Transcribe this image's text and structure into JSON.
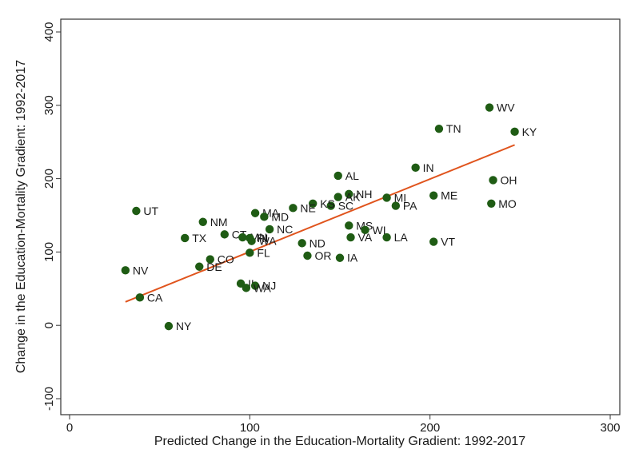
{
  "chart_data": {
    "type": "scatter",
    "xlabel": "Predicted Change in the Education-Mortality Gradient: 1992-2017",
    "ylabel": "Change in the Education-Mortality Gradient: 1992-2017",
    "xlim": [
      0,
      300
    ],
    "ylim": [
      -100,
      400
    ],
    "xticks": [
      "0",
      "100",
      "200",
      "300"
    ],
    "yticks": [
      "-100",
      "0",
      "100",
      "200",
      "300",
      "400"
    ],
    "grid": false,
    "colors": {
      "points": "#1f5c14",
      "fit_line": "#e0541d"
    },
    "fit_line": {
      "x": [
        31,
        247
      ],
      "y": [
        32,
        246
      ]
    },
    "points": [
      {
        "label": "WV",
        "x": 233,
        "y": 297
      },
      {
        "label": "TN",
        "x": 205,
        "y": 268
      },
      {
        "label": "KY",
        "x": 247,
        "y": 264
      },
      {
        "label": "IN",
        "x": 192,
        "y": 215
      },
      {
        "label": "AL",
        "x": 149,
        "y": 204
      },
      {
        "label": "OH",
        "x": 235,
        "y": 198
      },
      {
        "label": "ME",
        "x": 202,
        "y": 177
      },
      {
        "label": "MO",
        "x": 234,
        "y": 166
      },
      {
        "label": "MI",
        "x": 176,
        "y": 174
      },
      {
        "label": "PA",
        "x": 181,
        "y": 163
      },
      {
        "label": "NH",
        "x": 155,
        "y": 179
      },
      {
        "label": "AK",
        "x": 149,
        "y": 175
      },
      {
        "label": "SC",
        "x": 145,
        "y": 163
      },
      {
        "label": "KS",
        "x": 135,
        "y": 166
      },
      {
        "label": "NE",
        "x": 124,
        "y": 160
      },
      {
        "label": "MA",
        "x": 103,
        "y": 153
      },
      {
        "label": "MD",
        "x": 108,
        "y": 148
      },
      {
        "label": "UT",
        "x": 37,
        "y": 156
      },
      {
        "label": "NM",
        "x": 74,
        "y": 141
      },
      {
        "label": "MS",
        "x": 155,
        "y": 136
      },
      {
        "label": "WI",
        "x": 164,
        "y": 130
      },
      {
        "label": "VA",
        "x": 156,
        "y": 120
      },
      {
        "label": "LA",
        "x": 176,
        "y": 120
      },
      {
        "label": "VT",
        "x": 202,
        "y": 114
      },
      {
        "label": "NC",
        "x": 111,
        "y": 131
      },
      {
        "label": "CT",
        "x": 86,
        "y": 124
      },
      {
        "label": "TX",
        "x": 64,
        "y": 119
      },
      {
        "label": "MN",
        "x": 96,
        "y": 120
      },
      {
        "label": "RI",
        "x": 100,
        "y": 119
      },
      {
        "label": "WA",
        "x": 101,
        "y": 115
      },
      {
        "label": "ND",
        "x": 129,
        "y": 112
      },
      {
        "label": "FL",
        "x": 100,
        "y": 99
      },
      {
        "label": "OR",
        "x": 132,
        "y": 95
      },
      {
        "label": "IA",
        "x": 150,
        "y": 92
      },
      {
        "label": "CO",
        "x": 78,
        "y": 90
      },
      {
        "label": "DE",
        "x": 72,
        "y": 80
      },
      {
        "label": "NV",
        "x": 31,
        "y": 75
      },
      {
        "label": "IL",
        "x": 95,
        "y": 57
      },
      {
        "label": "NJ",
        "x": 103,
        "y": 54
      },
      {
        "label": "WA",
        "x": 98,
        "y": 51
      },
      {
        "label": "CA",
        "x": 39,
        "y": 38
      },
      {
        "label": "NY",
        "x": 55,
        "y": -1
      }
    ]
  }
}
